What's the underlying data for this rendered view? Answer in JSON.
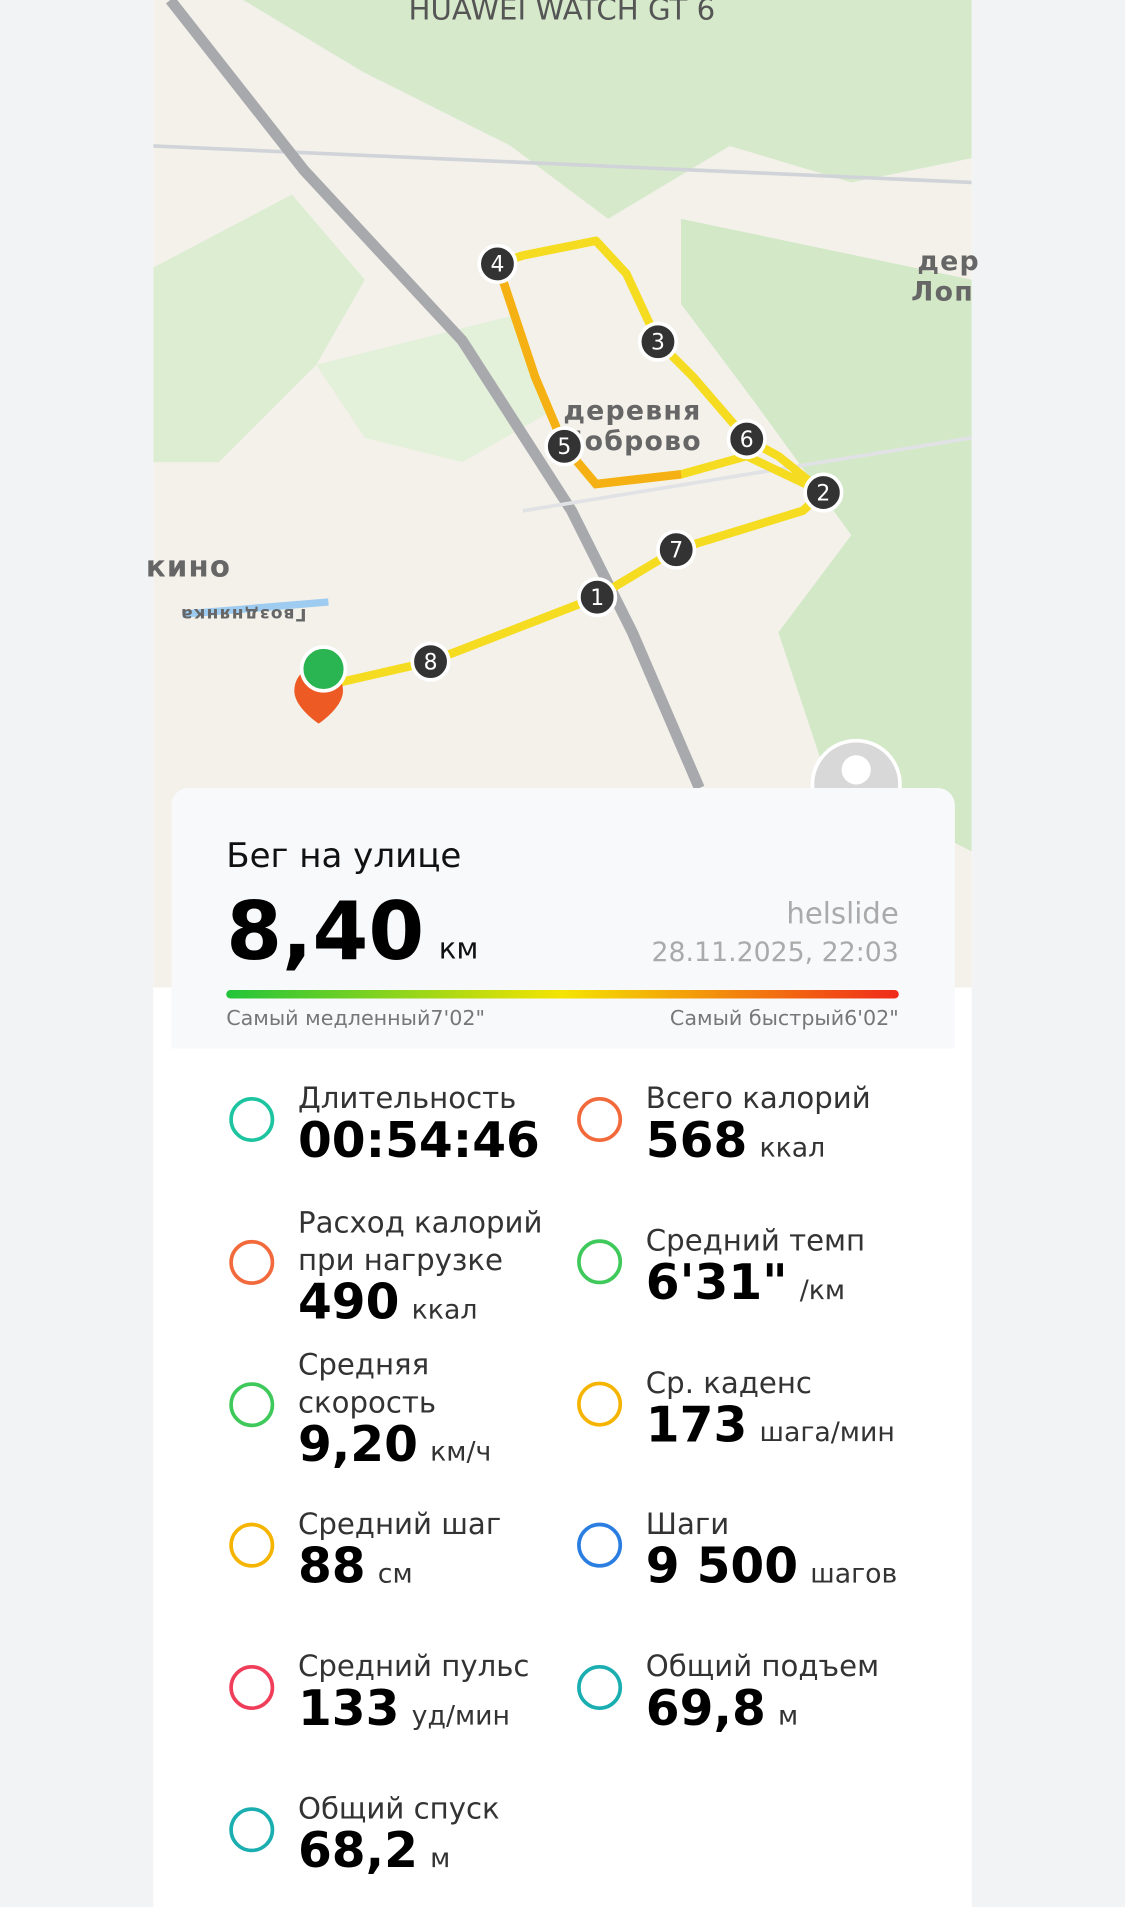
{
  "header": {
    "device": "HUAWEI WATCH GT 6"
  },
  "map": {
    "labels": [
      "дер",
      "Лоп",
      "деревня",
      "Боброво",
      "кино",
      "Гвозднянка"
    ],
    "markers": [
      "1",
      "2",
      "3",
      "4",
      "5",
      "6",
      "7",
      "8"
    ]
  },
  "card": {
    "activity": "Бег на улице",
    "distance": "8,40",
    "distance_unit": "км",
    "user": "helslide",
    "date": "28.11.2025, 22:03",
    "slowest_label": "Самый медленный",
    "slowest_value": "7'02\"",
    "fastest_label": "Самый быстрый",
    "fastest_value": "6'02\""
  },
  "metrics": [
    {
      "label": [
        "Длительность"
      ],
      "value": "00:54:46",
      "unit": ""
    },
    {
      "label": [
        "Всего калорий"
      ],
      "value": "568",
      "unit": "ккал"
    },
    {
      "label": [
        "Расход калорий",
        "при нагрузке"
      ],
      "value": "490",
      "unit": "ккал"
    },
    {
      "label": [
        "Средний темп"
      ],
      "value": "6'31\"",
      "unit": "/км"
    },
    {
      "label": [
        "Средняя",
        "скорость"
      ],
      "value": "9,20",
      "unit": "км/ч"
    },
    {
      "label": [
        "Ср. каденс"
      ],
      "value": "173",
      "unit": "шага/мин"
    },
    {
      "label": [
        "Средний шаг"
      ],
      "value": "88",
      "unit": "см"
    },
    {
      "label": [
        "Шаги"
      ],
      "value": "9 500",
      "unit": "шагов"
    },
    {
      "label": [
        "Средний пульс"
      ],
      "value": "133",
      "unit": "уд/мин"
    },
    {
      "label": [
        "Общий подъем"
      ],
      "value": "69,8",
      "unit": "м"
    },
    {
      "label": [
        "Общий спуск"
      ],
      "value": "68,2",
      "unit": "м"
    }
  ]
}
